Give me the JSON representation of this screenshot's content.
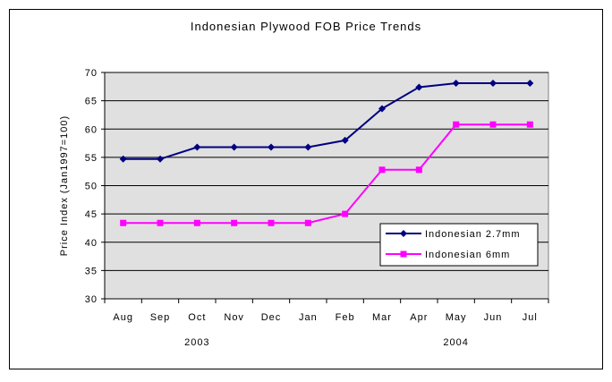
{
  "chart_data": {
    "type": "line",
    "title": "Indonesian Plywood FOB Price Trends",
    "xlabel": "",
    "ylabel": "Price Index (Jan1997=100)",
    "categories": [
      "Aug",
      "Sep",
      "Oct",
      "Nov",
      "Dec",
      "Jan",
      "Feb",
      "Mar",
      "Apr",
      "May",
      "Jun",
      "Jul"
    ],
    "year_labels": [
      {
        "label": "2003",
        "under": "Oct"
      },
      {
        "label": "2004",
        "under": "May"
      }
    ],
    "ylim": [
      30,
      70
    ],
    "yticks": [
      30,
      35,
      40,
      45,
      50,
      55,
      60,
      65,
      70
    ],
    "grid": true,
    "legend_position": "right-middle",
    "series": [
      {
        "name": "Indonesian 2.7mm",
        "color": "#000080",
        "marker": "diamond",
        "values": [
          54.7,
          54.7,
          56.8,
          56.8,
          56.8,
          56.8,
          58.0,
          63.6,
          67.4,
          68.1,
          68.1,
          68.1
        ]
      },
      {
        "name": "Indonesian 6mm",
        "color": "#FF00FF",
        "marker": "square",
        "values": [
          43.4,
          43.4,
          43.4,
          43.4,
          43.4,
          43.4,
          45.0,
          52.8,
          52.8,
          60.8,
          60.8,
          60.8
        ]
      }
    ],
    "plot_background": "#E0E0E0"
  }
}
